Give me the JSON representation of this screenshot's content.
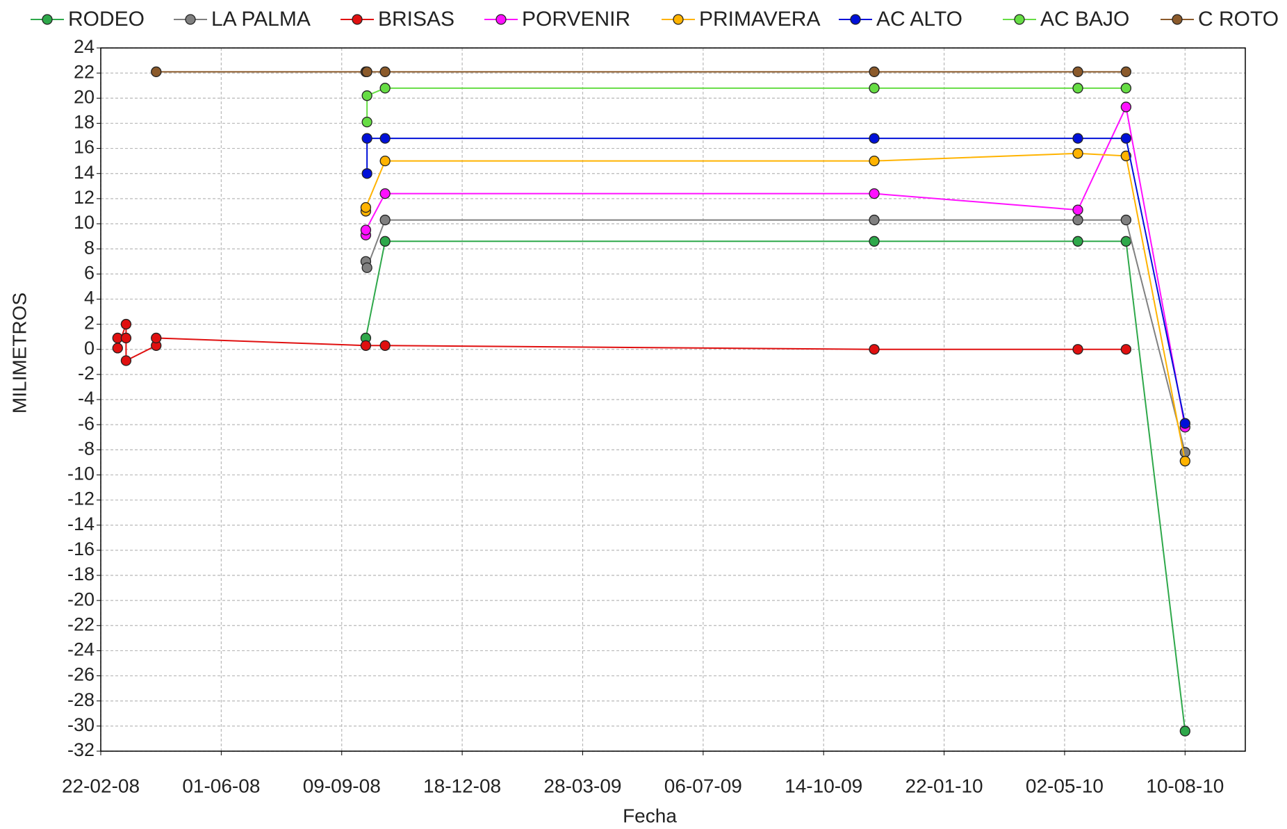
{
  "chart_data": {
    "type": "line",
    "xlabel": "Fecha",
    "ylabel": "MILIMETROS",
    "xlim": [
      "22-02-08",
      "29-09-10"
    ],
    "xticks": [
      "22-02-08",
      "01-06-08",
      "09-09-08",
      "18-12-08",
      "28-03-09",
      "06-07-09",
      "14-10-09",
      "22-01-10",
      "02-05-10",
      "10-08-10"
    ],
    "ylim": [
      -32,
      24
    ],
    "yticks": [
      -32,
      -30,
      -28,
      -26,
      -24,
      -22,
      -20,
      -18,
      -16,
      -14,
      -12,
      -10,
      -8,
      -6,
      -4,
      -2,
      0,
      2,
      4,
      6,
      8,
      10,
      12,
      14,
      16,
      18,
      20,
      22,
      24
    ],
    "grid": true,
    "legend": "top",
    "series": [
      {
        "name": "RODEO",
        "color": "#2ea84a",
        "x": [
          "29-09-08",
          "15-10-08",
          "25-11-09",
          "13-05-10",
          "22-06-10",
          "10-08-10"
        ],
        "values": [
          0.9,
          8.6,
          8.6,
          8.6,
          8.6,
          -30.4
        ]
      },
      {
        "name": "LA PALMA",
        "color": "#808080",
        "x": [
          "29-09-08",
          "30-09-08",
          "15-10-08",
          "25-11-09",
          "13-05-10",
          "22-06-10",
          "10-08-10"
        ],
        "values": [
          7.0,
          6.5,
          10.3,
          10.3,
          10.3,
          10.3,
          -8.2
        ]
      },
      {
        "name": "BRISAS",
        "color": "#e01010",
        "x": [
          "07-03-08",
          "07-03-08",
          "14-03-08",
          "14-03-08",
          "14-03-08",
          "08-04-08",
          "08-04-08",
          "29-09-08",
          "15-10-08",
          "25-11-09",
          "13-05-10",
          "22-06-10"
        ],
        "values": [
          0.9,
          0.1,
          2.0,
          0.9,
          -0.9,
          0.3,
          0.9,
          0.3,
          0.3,
          0,
          0,
          0
        ]
      },
      {
        "name": "PORVENIR",
        "color": "#ff10ff",
        "x": [
          "29-09-08",
          "29-09-08",
          "15-10-08",
          "25-11-09",
          "13-05-10",
          "22-06-10",
          "10-08-10"
        ],
        "values": [
          9.1,
          9.5,
          12.4,
          12.4,
          11.1,
          19.3,
          -6.2
        ]
      },
      {
        "name": "PRIMAVERA",
        "color": "#ffb300",
        "x": [
          "29-09-08",
          "29-09-08",
          "15-10-08",
          "25-11-09",
          "13-05-10",
          "22-06-10",
          "10-08-10"
        ],
        "values": [
          11.0,
          11.3,
          15.0,
          15.0,
          15.6,
          15.4,
          -8.9
        ]
      },
      {
        "name": "AC ALTO",
        "color": "#0010d8",
        "x": [
          "30-09-08",
          "30-09-08",
          "15-10-08",
          "25-11-09",
          "13-05-10",
          "22-06-10",
          "10-08-10"
        ],
        "values": [
          14.0,
          16.8,
          16.8,
          16.8,
          16.8,
          16.8,
          -5.9
        ]
      },
      {
        "name": "AC BAJO",
        "color": "#66dd44",
        "x": [
          "30-09-08",
          "30-09-08",
          "15-10-08",
          "25-11-09",
          "13-05-10",
          "22-06-10"
        ],
        "values": [
          18.1,
          20.2,
          20.8,
          20.8,
          20.8,
          20.8
        ]
      },
      {
        "name": "C ROTO",
        "color": "#8b5a2b",
        "x": [
          "08-04-08",
          "29-09-08",
          "30-09-08",
          "15-10-08",
          "25-11-09",
          "13-05-10",
          "22-06-10"
        ],
        "values": [
          22.1,
          22.1,
          22.1,
          22.1,
          22.1,
          22.1,
          22.1
        ]
      }
    ]
  }
}
